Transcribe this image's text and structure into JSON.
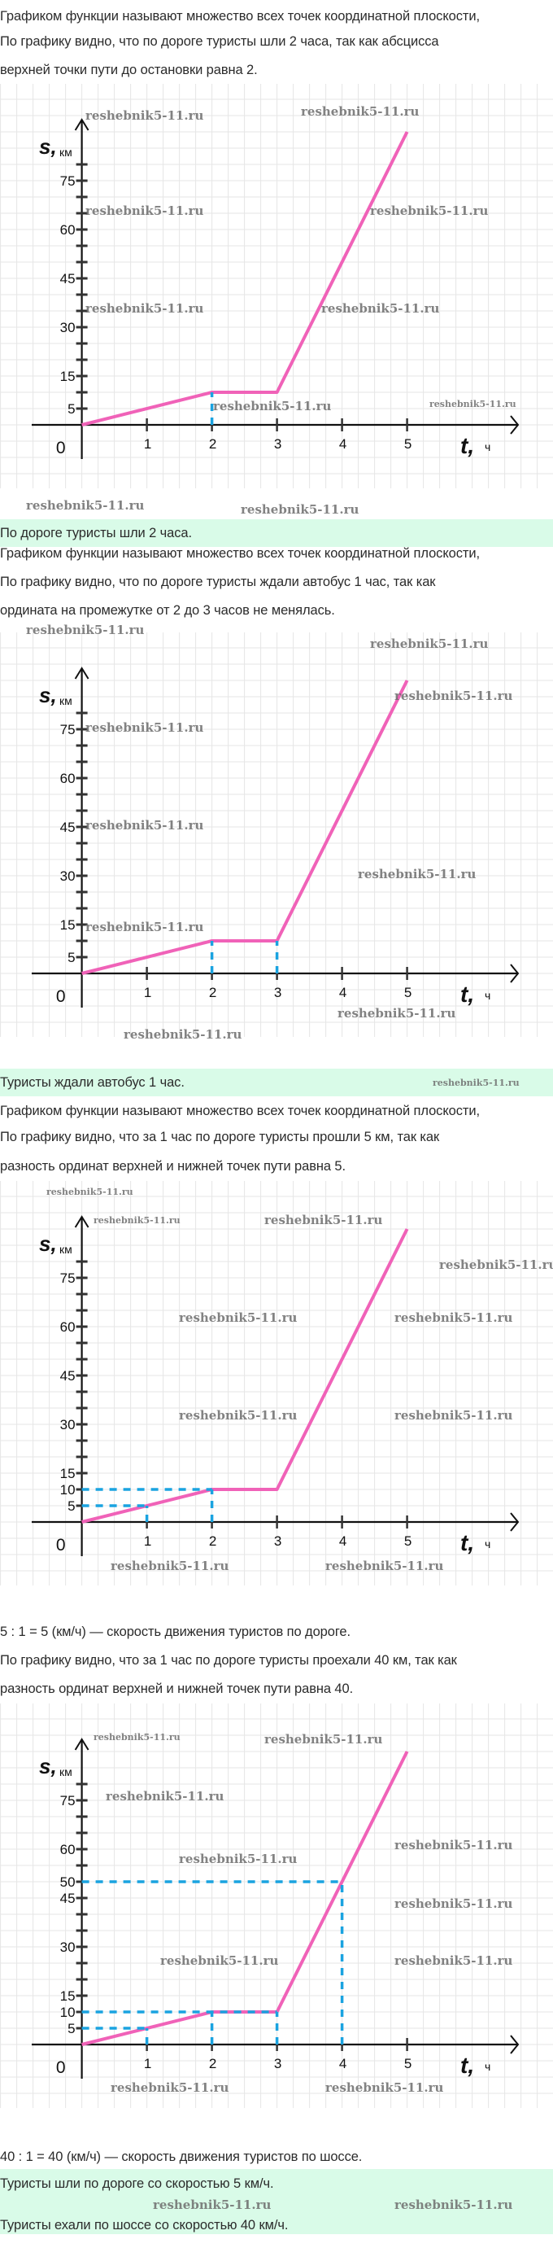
{
  "watermark": "reshebnik5-11.ru",
  "colors": {
    "graph_line": "#f062b8",
    "guide_line": "#1aa3e0",
    "answer_band": "#d9fbe8",
    "grid": "#e6e6e6"
  },
  "sections": [
    {
      "lines": [
        "Графиком функции называют множество всех точек координатной плоскости,",
        "По графику видно, что по дороге туристы шли 2 часа, так как абсцисса",
        "верхней точки пути до остановки равна 2."
      ],
      "answer": [
        "По дороге туристы шли 2 часа."
      ]
    },
    {
      "lines": [
        "Графиком функции называют множество всех точек координатной плоскости,",
        "По графику видно, что по дороге туристы ждали автобус 1 час, так как",
        "ордината на промежутке от 2 до 3 часов не менялась."
      ],
      "answer": [
        "Туристы ждали автобус 1 час."
      ]
    },
    {
      "lines": [
        "Графиком функции называют множество всех точек координатной плоскости,",
        "По графику видно, что за 1 час по дороге туристы прошли 5 км, так как",
        "разность ординат верхней и нижней точек пути равна 5."
      ],
      "after": "5 : 1 = 5 (км/ч) — скорость движения туристов по дороге."
    },
    {
      "lines": [
        "По графику видно, что за 1 час по дороге туристы проехали 40 км, так как",
        "разность ординат верхней и нижней точек пути равна 40."
      ],
      "after": "40 : 1 = 40 (км/ч) — скорость движения туристов по шоссе.",
      "answer": [
        "Туристы шли по дороге со скоростью 5 км/ч.",
        "Туристы ехали по шоссе со скоростью 40 км/ч."
      ]
    }
  ],
  "chart_data": [
    {
      "type": "line",
      "xlabel": "t",
      "xunit": "ч",
      "ylabel": "s",
      "yunit": "км",
      "origin_label": "0",
      "x_ticks": [
        1,
        2,
        3,
        4,
        5
      ],
      "y_tick_step": 5,
      "y_tick_max": 80,
      "y_tick_labels": [
        5,
        15,
        30,
        45,
        60,
        75
      ],
      "grid": true,
      "points": [
        [
          0,
          0
        ],
        [
          2,
          10
        ],
        [
          3,
          10
        ],
        [
          5,
          90
        ]
      ],
      "guides": [
        [
          [
            2,
            0
          ],
          [
            2,
            10
          ]
        ]
      ]
    },
    {
      "type": "line",
      "xlabel": "t",
      "xunit": "ч",
      "ylabel": "s",
      "yunit": "км",
      "origin_label": "0",
      "x_ticks": [
        1,
        2,
        3,
        4,
        5
      ],
      "y_tick_step": 5,
      "y_tick_max": 80,
      "y_tick_labels": [
        5,
        15,
        30,
        45,
        60,
        75
      ],
      "grid": true,
      "points": [
        [
          0,
          0
        ],
        [
          2,
          10
        ],
        [
          3,
          10
        ],
        [
          5,
          90
        ]
      ],
      "guides": [
        [
          [
            2,
            0
          ],
          [
            2,
            10
          ]
        ],
        [
          [
            3,
            0
          ],
          [
            3,
            10
          ]
        ]
      ]
    },
    {
      "type": "line",
      "xlabel": "t",
      "xunit": "ч",
      "ylabel": "s",
      "yunit": "км",
      "origin_label": "0",
      "x_ticks": [
        1,
        2,
        3,
        4,
        5
      ],
      "y_tick_step": 5,
      "y_tick_max": 80,
      "y_tick_labels": [
        5,
        10,
        15,
        30,
        45,
        60,
        75
      ],
      "grid": true,
      "points": [
        [
          0,
          0
        ],
        [
          2,
          10
        ],
        [
          3,
          10
        ],
        [
          5,
          90
        ]
      ],
      "guides": [
        [
          [
            0,
            5
          ],
          [
            1,
            5
          ]
        ],
        [
          [
            1,
            0
          ],
          [
            1,
            5
          ]
        ],
        [
          [
            0,
            10
          ],
          [
            2,
            10
          ]
        ],
        [
          [
            2,
            0
          ],
          [
            2,
            10
          ]
        ]
      ]
    },
    {
      "type": "line",
      "xlabel": "t",
      "xunit": "ч",
      "ylabel": "s",
      "yunit": "км",
      "origin_label": "0",
      "x_ticks": [
        1,
        2,
        3,
        4,
        5
      ],
      "y_tick_step": 5,
      "y_tick_max": 80,
      "y_tick_labels": [
        5,
        10,
        15,
        30,
        45,
        50,
        60,
        75
      ],
      "grid": true,
      "points": [
        [
          0,
          0
        ],
        [
          2,
          10
        ],
        [
          3,
          10
        ],
        [
          5,
          90
        ]
      ],
      "guides": [
        [
          [
            0,
            5
          ],
          [
            1,
            5
          ]
        ],
        [
          [
            1,
            0
          ],
          [
            1,
            5
          ]
        ],
        [
          [
            0,
            10
          ],
          [
            3,
            10
          ]
        ],
        [
          [
            2,
            0
          ],
          [
            2,
            10
          ]
        ],
        [
          [
            3,
            0
          ],
          [
            3,
            10
          ]
        ],
        [
          [
            0,
            50
          ],
          [
            4,
            50
          ]
        ],
        [
          [
            4,
            0
          ],
          [
            4,
            50
          ]
        ]
      ]
    }
  ]
}
